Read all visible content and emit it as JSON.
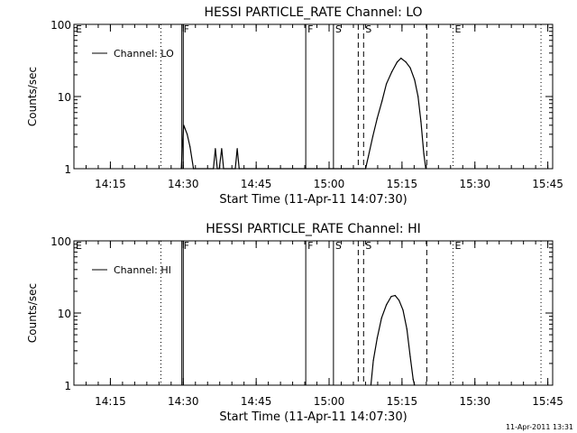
{
  "chart_data": [
    {
      "type": "line",
      "title": "HESSI PARTICLE_RATE Channel: LO",
      "ylabel": "Counts/sec",
      "xlabel": "Start Time (11-Apr-11 14:07:30)",
      "x_unit": "minutes after 14:07:30",
      "y_scale": "log",
      "ylim": [
        1,
        100
      ],
      "xlim": [
        0,
        98.5
      ],
      "y_ticks": [
        "1",
        "10",
        "100"
      ],
      "x_ticks": [
        {
          "label": "14:15",
          "x": 7.5
        },
        {
          "label": "14:30",
          "x": 22.5
        },
        {
          "label": "14:45",
          "x": 37.5
        },
        {
          "label": "15:00",
          "x": 52.5
        },
        {
          "label": "15:15",
          "x": 67.5
        },
        {
          "label": "15:30",
          "x": 82.5
        },
        {
          "label": "15:45",
          "x": 97.5
        }
      ],
      "legend": {
        "label": "Channel: LO",
        "position": "top-left"
      },
      "markers": [
        {
          "label": "E",
          "x": 0,
          "style": "dotted"
        },
        {
          "label": "",
          "x": 17.9,
          "style": "dotted"
        },
        {
          "label": "F",
          "x": 22.2,
          "style": "solid"
        },
        {
          "label": "",
          "x": 22.5,
          "style": "solid"
        },
        {
          "label": "F",
          "x": 47.7,
          "style": "solid"
        },
        {
          "label": "S",
          "x": 53.4,
          "style": "solid"
        },
        {
          "label": "",
          "x": 58.5,
          "style": "dashed"
        },
        {
          "label": "S",
          "x": 59.6,
          "style": "dashed"
        },
        {
          "label": "",
          "x": 72.6,
          "style": "dashed"
        },
        {
          "label": "E",
          "x": 78.0,
          "style": "dotted"
        },
        {
          "label": "",
          "x": 96.1,
          "style": "dotted"
        }
      ],
      "series": [
        {
          "values": [
            [
              22.1,
              1
            ],
            [
              22.3,
              2
            ],
            [
              22.6,
              4
            ],
            [
              23.3,
              3
            ],
            [
              23.9,
              2
            ],
            [
              24.6,
              1
            ],
            [
              28.7,
              1
            ],
            [
              29.1,
              1.9
            ],
            [
              29.5,
              1
            ],
            [
              29.9,
              1
            ],
            [
              30.4,
              1.9
            ],
            [
              30.8,
              1
            ],
            [
              33.2,
              1
            ],
            [
              33.6,
              1.9
            ],
            [
              34.0,
              1
            ],
            [
              60.0,
              1
            ],
            [
              60.6,
              1.5
            ],
            [
              61.5,
              2.8
            ],
            [
              62.4,
              5
            ],
            [
              63.4,
              8.7
            ],
            [
              64.3,
              15
            ],
            [
              65.4,
              22
            ],
            [
              66.5,
              30
            ],
            [
              67.3,
              34
            ],
            [
              68.3,
              30
            ],
            [
              69.2,
              25
            ],
            [
              70.1,
              17
            ],
            [
              70.8,
              10
            ],
            [
              71.4,
              4.5
            ],
            [
              72.0,
              1.6
            ],
            [
              72.4,
              1
            ]
          ]
        }
      ]
    },
    {
      "type": "line",
      "title": "HESSI PARTICLE_RATE Channel: HI",
      "ylabel": "Counts/sec",
      "xlabel": "Start Time (11-Apr-11 14:07:30)",
      "x_unit": "minutes after 14:07:30",
      "y_scale": "log",
      "ylim": [
        1,
        100
      ],
      "xlim": [
        0,
        98.5
      ],
      "y_ticks": [
        "1",
        "10",
        "100"
      ],
      "x_ticks": [
        {
          "label": "14:15",
          "x": 7.5
        },
        {
          "label": "14:30",
          "x": 22.5
        },
        {
          "label": "14:45",
          "x": 37.5
        },
        {
          "label": "15:00",
          "x": 52.5
        },
        {
          "label": "15:15",
          "x": 67.5
        },
        {
          "label": "15:30",
          "x": 82.5
        },
        {
          "label": "15:45",
          "x": 97.5
        }
      ],
      "legend": {
        "label": "Channel: HI",
        "position": "top-left"
      },
      "markers": [
        {
          "label": "E",
          "x": 0,
          "style": "dotted"
        },
        {
          "label": "",
          "x": 17.9,
          "style": "dotted"
        },
        {
          "label": "F",
          "x": 22.2,
          "style": "solid"
        },
        {
          "label": "",
          "x": 22.5,
          "style": "solid"
        },
        {
          "label": "F",
          "x": 47.7,
          "style": "solid"
        },
        {
          "label": "S",
          "x": 53.4,
          "style": "solid"
        },
        {
          "label": "",
          "x": 58.5,
          "style": "dashed"
        },
        {
          "label": "S",
          "x": 59.6,
          "style": "dashed"
        },
        {
          "label": "",
          "x": 72.6,
          "style": "dashed"
        },
        {
          "label": "E",
          "x": 78.0,
          "style": "dotted"
        },
        {
          "label": "",
          "x": 96.1,
          "style": "dotted"
        }
      ],
      "series": [
        {
          "values": [
            [
              61.1,
              1
            ],
            [
              61.6,
              2.2
            ],
            [
              62.4,
              4.5
            ],
            [
              63.3,
              8.5
            ],
            [
              64.3,
              13
            ],
            [
              65.3,
              17
            ],
            [
              66.1,
              17.5
            ],
            [
              66.9,
              15
            ],
            [
              67.7,
              11
            ],
            [
              68.5,
              6
            ],
            [
              69.2,
              2.5
            ],
            [
              69.8,
              1.2
            ],
            [
              70.1,
              1
            ]
          ]
        }
      ]
    }
  ],
  "footer": {
    "timestamp": "11-Apr-2011 13:31"
  }
}
